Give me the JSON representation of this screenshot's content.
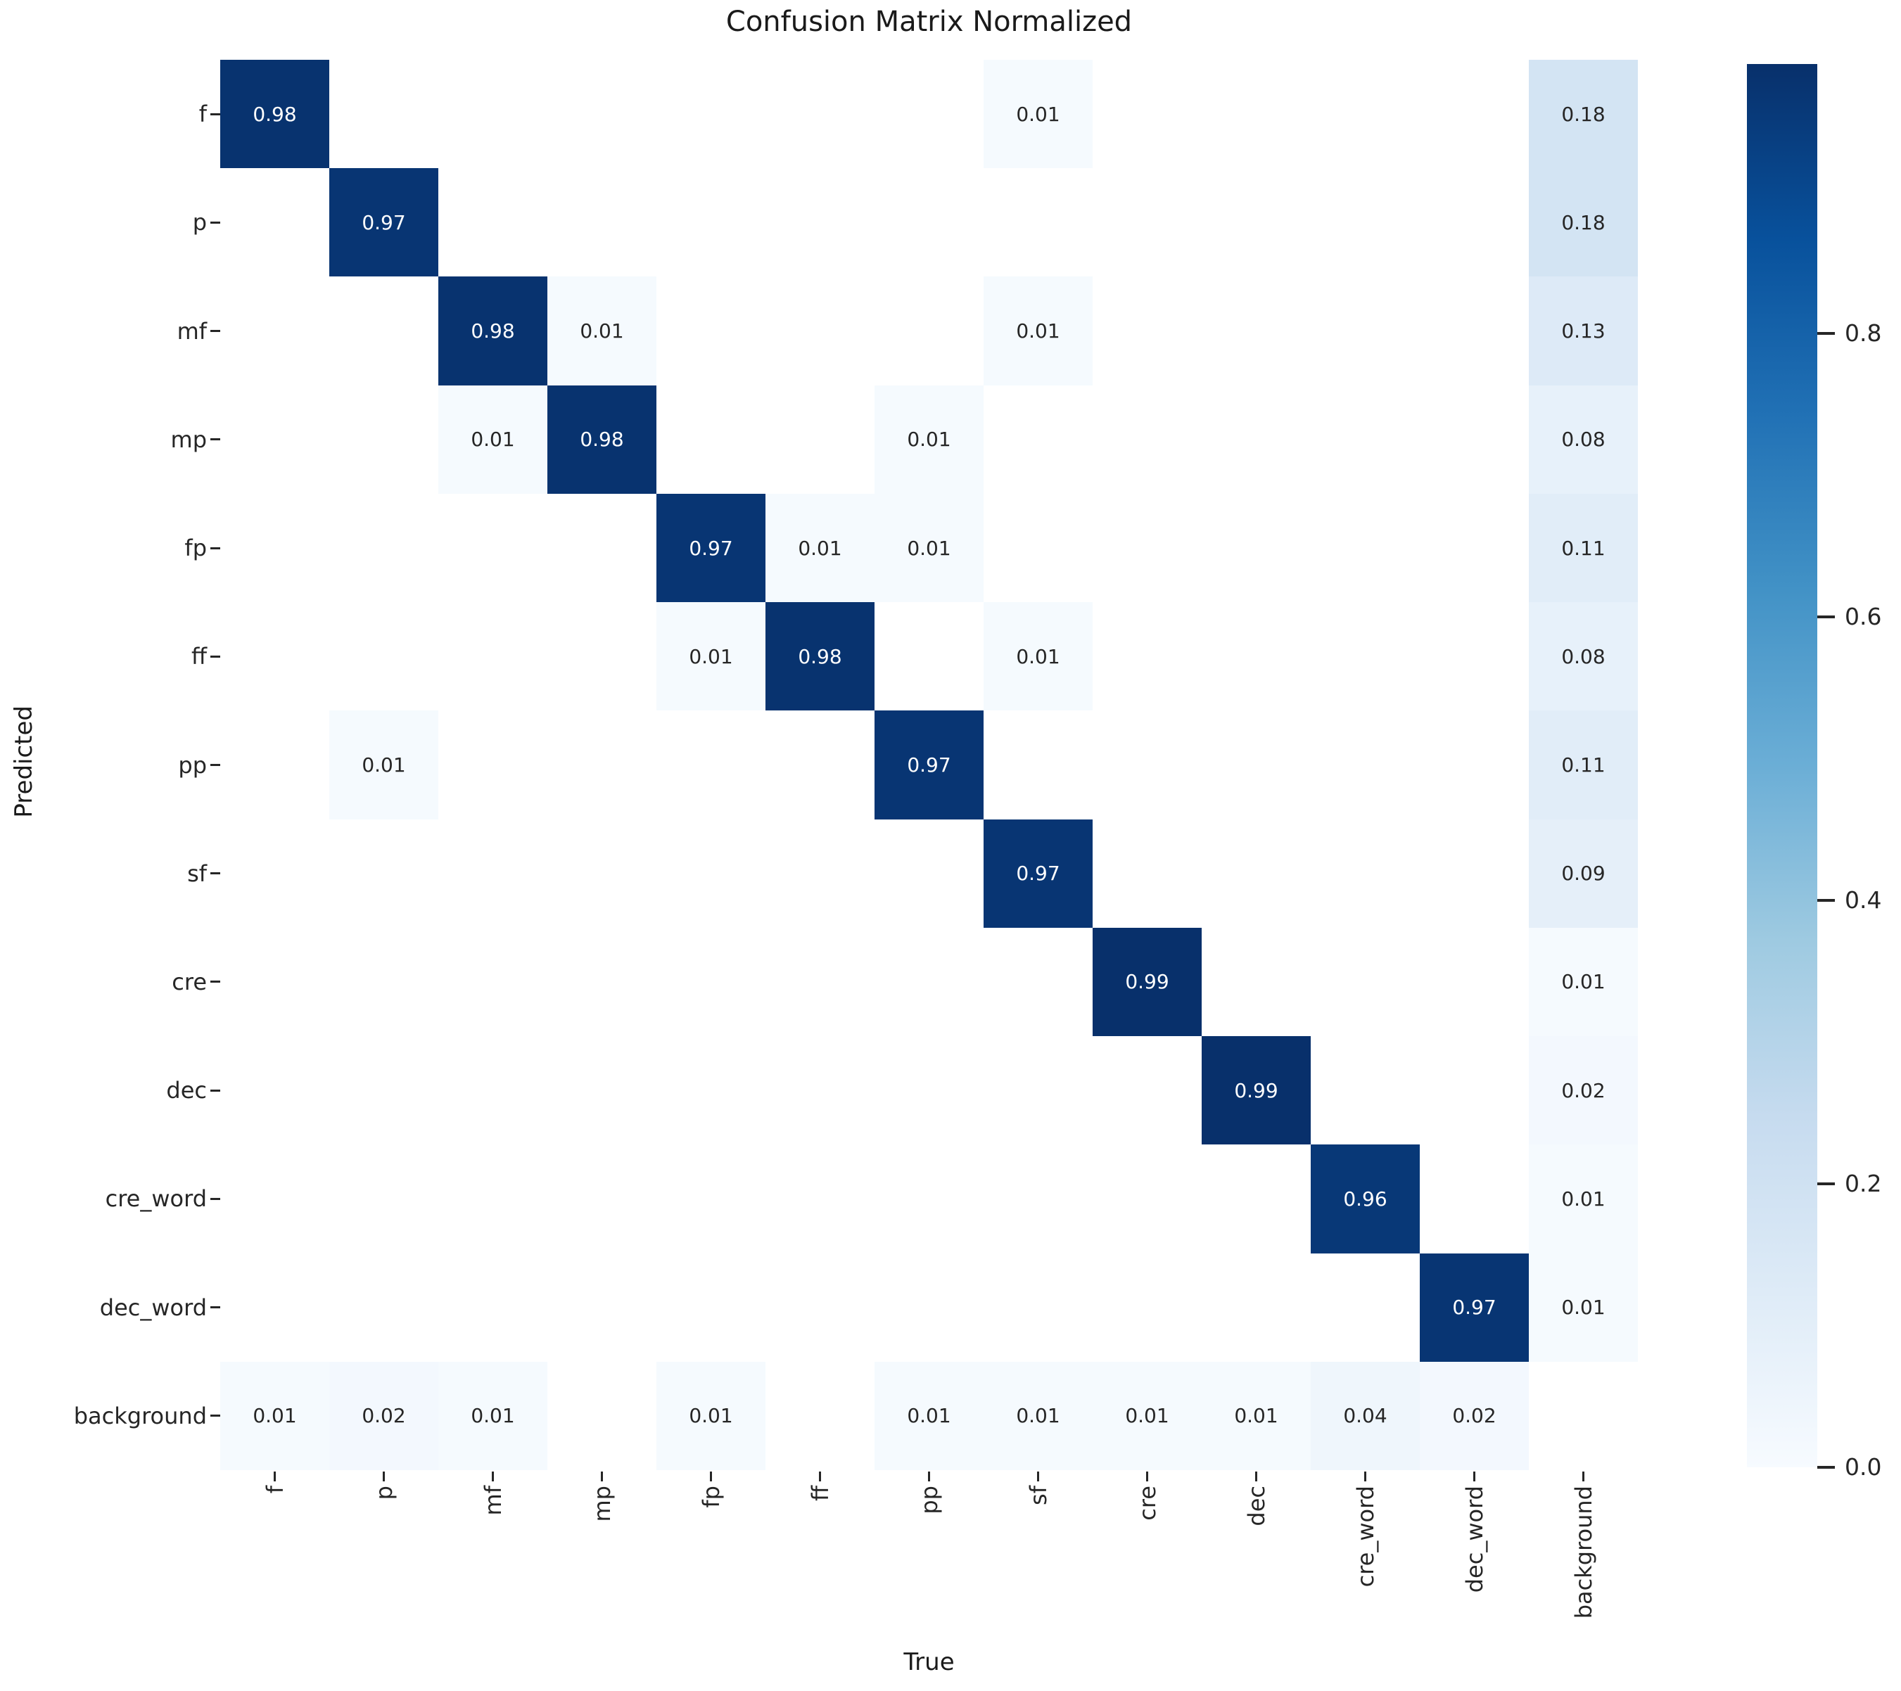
{
  "title": "Confusion Matrix Normalized",
  "axes": {
    "x_label": "True",
    "y_label": "Predicted"
  },
  "chart_data": {
    "type": "heatmap",
    "title": "Confusion Matrix Normalized",
    "xlabel": "True",
    "ylabel": "Predicted",
    "x_categories": [
      "f",
      "p",
      "mf",
      "mp",
      "fp",
      "ff",
      "pp",
      "sf",
      "cre",
      "dec",
      "cre_word",
      "dec_word",
      "background"
    ],
    "y_categories": [
      "f",
      "p",
      "mf",
      "mp",
      "fp",
      "ff",
      "pp",
      "sf",
      "cre",
      "dec",
      "cre_word",
      "dec_word",
      "background"
    ],
    "vmin": 0.0,
    "vmax": 0.99,
    "colormap": "Blues",
    "grid": false,
    "colorbar_position": "right",
    "colorbar_ticks": [
      0.8,
      0.6,
      0.4,
      0.2,
      0.0
    ],
    "annotation_format": "0.00",
    "matrix": [
      [
        0.98,
        null,
        null,
        null,
        null,
        null,
        null,
        0.01,
        null,
        null,
        null,
        null,
        0.18
      ],
      [
        null,
        0.97,
        null,
        null,
        null,
        null,
        null,
        null,
        null,
        null,
        null,
        null,
        0.18
      ],
      [
        null,
        null,
        0.98,
        0.01,
        null,
        null,
        null,
        0.01,
        null,
        null,
        null,
        null,
        0.13
      ],
      [
        null,
        null,
        0.01,
        0.98,
        null,
        null,
        0.01,
        null,
        null,
        null,
        null,
        null,
        0.08
      ],
      [
        null,
        null,
        null,
        null,
        0.97,
        0.01,
        0.01,
        null,
        null,
        null,
        null,
        null,
        0.11
      ],
      [
        null,
        null,
        null,
        null,
        0.01,
        0.98,
        null,
        0.01,
        null,
        null,
        null,
        null,
        0.08
      ],
      [
        null,
        0.01,
        null,
        null,
        null,
        null,
        0.97,
        null,
        null,
        null,
        null,
        null,
        0.11
      ],
      [
        null,
        null,
        null,
        null,
        null,
        null,
        null,
        0.97,
        null,
        null,
        null,
        null,
        0.09
      ],
      [
        null,
        null,
        null,
        null,
        null,
        null,
        null,
        null,
        0.99,
        null,
        null,
        null,
        0.01
      ],
      [
        null,
        null,
        null,
        null,
        null,
        null,
        null,
        null,
        null,
        0.99,
        null,
        null,
        0.02
      ],
      [
        null,
        null,
        null,
        null,
        null,
        null,
        null,
        null,
        null,
        null,
        0.96,
        null,
        0.01
      ],
      [
        null,
        null,
        null,
        null,
        null,
        null,
        null,
        null,
        null,
        null,
        null,
        0.97,
        0.01
      ],
      [
        0.01,
        0.02,
        0.01,
        null,
        0.01,
        null,
        0.01,
        0.01,
        0.01,
        0.01,
        0.04,
        0.02,
        null
      ]
    ]
  },
  "colors": {
    "figure_background": "#ffffff",
    "empty_cell": "#ffffff",
    "cell_max": "#08306b",
    "cell_min": "#f7fbff",
    "annotation_on_dark": "#ffffff",
    "annotation_on_light": "#262626",
    "tick_color": "#262626",
    "blues_anchors": [
      "#f7fbff",
      "#deebf7",
      "#c6dbef",
      "#9ecae1",
      "#6baed6",
      "#4292c6",
      "#2171b5",
      "#08519c",
      "#08306b"
    ]
  }
}
